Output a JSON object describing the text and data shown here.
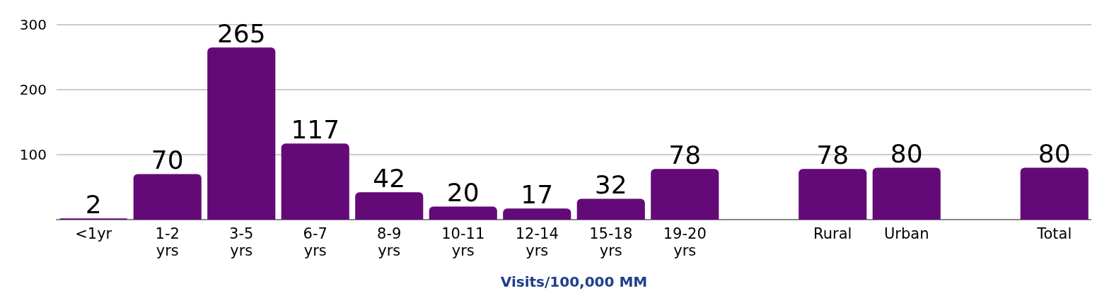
{
  "chart_data": {
    "type": "bar",
    "xlabel": "Visits/100,000 MM",
    "categories": [
      "<1yr",
      "1-2\nyrs",
      "3-5\nyrs",
      "6-7\nyrs",
      "8-9\nyrs",
      "10-11\nyrs",
      "12-14\nyrs",
      "15-18\nyrs",
      "19-20\nyrs",
      null,
      "Rural",
      "Urban",
      null,
      "Total"
    ],
    "values": [
      2,
      70,
      265,
      117,
      42,
      20,
      17,
      32,
      78,
      null,
      78,
      80,
      null,
      80
    ],
    "color": "#640a78",
    "ylim": [
      0,
      300
    ],
    "yticks": [
      100,
      200,
      300
    ],
    "grid": "y",
    "data_labels": true
  }
}
